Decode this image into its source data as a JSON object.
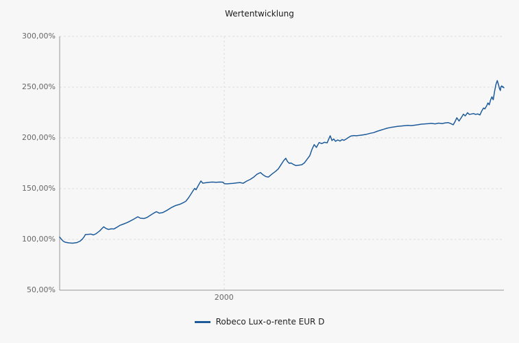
{
  "title": "Wertentwicklung",
  "legend": {
    "series_label": "Robeco Lux-o-rente EUR D"
  },
  "colors": {
    "background": "#f7f7f7",
    "line": "#1c5a99",
    "grid": "#dcdcdc",
    "axis": "#949494",
    "tick_text": "#666666",
    "title_text": "#1a1a1a"
  },
  "chart_data": {
    "type": "line",
    "title": "Wertentwicklung",
    "xlabel": "",
    "ylabel": "",
    "grid": "dashed",
    "legend_position": "bottom-center",
    "y_axis": {
      "min": 50,
      "max": 300,
      "unit": "%",
      "ticks": [
        {
          "value": 300,
          "label": "300,00%"
        },
        {
          "value": 250,
          "label": "250,00%"
        },
        {
          "value": 200,
          "label": "200,00%"
        },
        {
          "value": 150,
          "label": "150,00%"
        },
        {
          "value": 100,
          "label": "100,00%"
        },
        {
          "value": 50,
          "label": "50,00%"
        }
      ]
    },
    "x_axis": {
      "ticks": [
        {
          "fraction": 0.37,
          "label": "2000"
        }
      ]
    },
    "series": [
      {
        "name": "Robeco Lux-o-rente EUR D",
        "color": "#1c5a99",
        "unit": "%",
        "points": [
          [
            0.0,
            102.3
          ],
          [
            0.004,
            100.2
          ],
          [
            0.008,
            98.3
          ],
          [
            0.012,
            97.3
          ],
          [
            0.02,
            96.6
          ],
          [
            0.029,
            96.3
          ],
          [
            0.039,
            96.9
          ],
          [
            0.046,
            98.3
          ],
          [
            0.051,
            100.2
          ],
          [
            0.055,
            102.5
          ],
          [
            0.058,
            104.8
          ],
          [
            0.064,
            105.0
          ],
          [
            0.071,
            105.2
          ],
          [
            0.076,
            104.4
          ],
          [
            0.082,
            105.6
          ],
          [
            0.09,
            108.3
          ],
          [
            0.099,
            112.4
          ],
          [
            0.104,
            110.9
          ],
          [
            0.11,
            109.8
          ],
          [
            0.116,
            110.5
          ],
          [
            0.122,
            110.3
          ],
          [
            0.129,
            112.0
          ],
          [
            0.136,
            113.9
          ],
          [
            0.144,
            115.2
          ],
          [
            0.152,
            116.6
          ],
          [
            0.159,
            118.1
          ],
          [
            0.167,
            120.0
          ],
          [
            0.176,
            122.3
          ],
          [
            0.182,
            120.9
          ],
          [
            0.19,
            120.6
          ],
          [
            0.196,
            121.5
          ],
          [
            0.205,
            124.0
          ],
          [
            0.213,
            126.2
          ],
          [
            0.218,
            127.3
          ],
          [
            0.224,
            125.9
          ],
          [
            0.232,
            126.4
          ],
          [
            0.241,
            128.5
          ],
          [
            0.252,
            131.5
          ],
          [
            0.261,
            133.4
          ],
          [
            0.27,
            134.5
          ],
          [
            0.278,
            136.1
          ],
          [
            0.284,
            137.6
          ],
          [
            0.29,
            140.9
          ],
          [
            0.296,
            144.9
          ],
          [
            0.301,
            148.4
          ],
          [
            0.304,
            150.2
          ],
          [
            0.307,
            148.9
          ],
          [
            0.313,
            153.8
          ],
          [
            0.318,
            157.6
          ],
          [
            0.322,
            155.4
          ],
          [
            0.329,
            155.8
          ],
          [
            0.336,
            156.2
          ],
          [
            0.344,
            156.5
          ],
          [
            0.352,
            156.3
          ],
          [
            0.36,
            156.5
          ],
          [
            0.367,
            156.4
          ],
          [
            0.371,
            154.9
          ],
          [
            0.376,
            154.7
          ],
          [
            0.383,
            155.0
          ],
          [
            0.391,
            155.3
          ],
          [
            0.398,
            155.7
          ],
          [
            0.406,
            156.0
          ],
          [
            0.413,
            155.3
          ],
          [
            0.421,
            157.4
          ],
          [
            0.429,
            159.1
          ],
          [
            0.437,
            161.4
          ],
          [
            0.444,
            164.1
          ],
          [
            0.452,
            165.9
          ],
          [
            0.458,
            163.6
          ],
          [
            0.464,
            161.9
          ],
          [
            0.47,
            161.4
          ],
          [
            0.478,
            164.4
          ],
          [
            0.486,
            167.0
          ],
          [
            0.492,
            169.4
          ],
          [
            0.498,
            173.4
          ],
          [
            0.504,
            177.4
          ],
          [
            0.509,
            179.9
          ],
          [
            0.513,
            176.6
          ],
          [
            0.517,
            174.9
          ],
          [
            0.521,
            175.3
          ],
          [
            0.526,
            173.9
          ],
          [
            0.532,
            172.7
          ],
          [
            0.539,
            173.2
          ],
          [
            0.545,
            173.6
          ],
          [
            0.551,
            175.4
          ],
          [
            0.557,
            178.9
          ],
          [
            0.563,
            182.4
          ],
          [
            0.568,
            188.8
          ],
          [
            0.573,
            193.4
          ],
          [
            0.578,
            190.6
          ],
          [
            0.584,
            195.4
          ],
          [
            0.59,
            194.4
          ],
          [
            0.596,
            195.7
          ],
          [
            0.602,
            195.1
          ],
          [
            0.609,
            202.1
          ],
          [
            0.613,
            197.4
          ],
          [
            0.617,
            198.9
          ],
          [
            0.621,
            196.6
          ],
          [
            0.626,
            198.0
          ],
          [
            0.631,
            196.9
          ],
          [
            0.636,
            198.4
          ],
          [
            0.64,
            197.6
          ],
          [
            0.645,
            198.9
          ],
          [
            0.65,
            200.4
          ],
          [
            0.656,
            201.9
          ],
          [
            0.662,
            202.3
          ],
          [
            0.668,
            202.1
          ],
          [
            0.676,
            202.5
          ],
          [
            0.683,
            203.0
          ],
          [
            0.691,
            203.6
          ],
          [
            0.699,
            204.5
          ],
          [
            0.707,
            205.2
          ],
          [
            0.714,
            206.4
          ],
          [
            0.722,
            207.5
          ],
          [
            0.73,
            208.6
          ],
          [
            0.737,
            209.5
          ],
          [
            0.745,
            210.3
          ],
          [
            0.753,
            210.8
          ],
          [
            0.76,
            211.3
          ],
          [
            0.768,
            211.6
          ],
          [
            0.776,
            212.0
          ],
          [
            0.784,
            212.3
          ],
          [
            0.791,
            212.1
          ],
          [
            0.799,
            212.5
          ],
          [
            0.807,
            213.0
          ],
          [
            0.814,
            213.5
          ],
          [
            0.822,
            213.8
          ],
          [
            0.83,
            214.0
          ],
          [
            0.837,
            214.3
          ],
          [
            0.845,
            213.8
          ],
          [
            0.853,
            214.5
          ],
          [
            0.861,
            214.1
          ],
          [
            0.868,
            214.8
          ],
          [
            0.875,
            215.0
          ],
          [
            0.881,
            214.0
          ],
          [
            0.886,
            212.9
          ],
          [
            0.89,
            216.0
          ],
          [
            0.894,
            219.8
          ],
          [
            0.899,
            216.6
          ],
          [
            0.904,
            219.9
          ],
          [
            0.909,
            223.4
          ],
          [
            0.913,
            221.6
          ],
          [
            0.918,
            224.8
          ],
          [
            0.922,
            223.1
          ],
          [
            0.927,
            223.5
          ],
          [
            0.932,
            224.0
          ],
          [
            0.936,
            223.1
          ],
          [
            0.941,
            223.6
          ],
          [
            0.946,
            222.6
          ],
          [
            0.95,
            226.4
          ],
          [
            0.954,
            229.4
          ],
          [
            0.957,
            228.5
          ],
          [
            0.961,
            231.4
          ],
          [
            0.964,
            234.4
          ],
          [
            0.967,
            232.6
          ],
          [
            0.97,
            237.4
          ],
          [
            0.973,
            240.4
          ],
          [
            0.976,
            237.6
          ],
          [
            0.979,
            245.9
          ],
          [
            0.982,
            252.4
          ],
          [
            0.985,
            256.4
          ],
          [
            0.988,
            252.1
          ],
          [
            0.99,
            248.6
          ],
          [
            0.992,
            246.6
          ],
          [
            0.993,
            249.9
          ],
          [
            0.995,
            251.2
          ],
          [
            0.997,
            249.9
          ],
          [
            0.998,
            250.4
          ],
          [
            1.0,
            249.4
          ]
        ]
      }
    ]
  }
}
